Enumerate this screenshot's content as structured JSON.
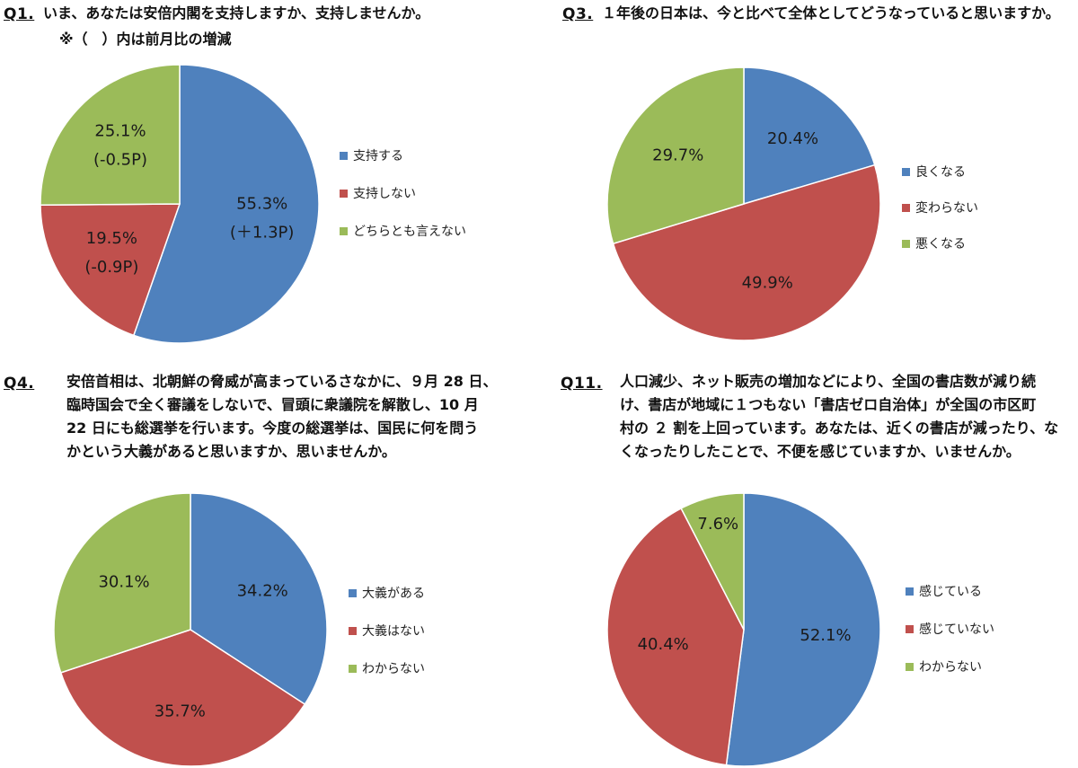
{
  "colors": {
    "blue": "#4f81bd",
    "red": "#c0504d",
    "green": "#9bbb59"
  },
  "panels": [
    {
      "id": "q1",
      "question_label": "Q1.",
      "question_lines": [
        "いま、あなたは安倍内閣を支持しますか、支持しませんか。"
      ],
      "note": "※（　）内は前月比の増減",
      "chart_data": {
        "type": "pie",
        "categories": [
          "支持する",
          "支持しない",
          "どちらとも言えない"
        ],
        "values": [
          55.3,
          19.5,
          25.1
        ],
        "labels": [
          "55.3%",
          "19.5%",
          "25.1%"
        ],
        "sublabels": [
          "(＋1.3P)",
          "(-0.9P)",
          "(-0.5P)"
        ],
        "colors": [
          "#4f81bd",
          "#c0504d",
          "#9bbb59"
        ],
        "legend_position": "right"
      }
    },
    {
      "id": "q3",
      "question_label": "Q3.",
      "question_lines": [
        "１年後の日本は、今と比べて全体としてどうなっていると思いますか。"
      ],
      "chart_data": {
        "type": "pie",
        "categories": [
          "良くなる",
          "変わらない",
          "悪くなる"
        ],
        "values": [
          20.4,
          49.9,
          29.7
        ],
        "labels": [
          "20.4%",
          "49.9%",
          "29.7%"
        ],
        "colors": [
          "#4f81bd",
          "#c0504d",
          "#9bbb59"
        ],
        "legend_position": "right"
      }
    },
    {
      "id": "q4",
      "question_label": "Q4.",
      "question_lines": [
        "安倍首相は、北朝鮮の脅威が高まっているさなかに、９月 28 日、",
        "臨時国会で全く審議をしないで、冒頭に衆議院を解散し、10 月",
        "22 日にも総選挙を行います。今度の総選挙は、国民に何を問う",
        "かという大義があると思いますか、思いませんか。"
      ],
      "chart_data": {
        "type": "pie",
        "categories": [
          "大義がある",
          "大義はない",
          "わからない"
        ],
        "values": [
          34.2,
          35.7,
          30.1
        ],
        "labels": [
          "34.2%",
          "35.7%",
          "30.1%"
        ],
        "colors": [
          "#4f81bd",
          "#c0504d",
          "#9bbb59"
        ],
        "legend_position": "right"
      }
    },
    {
      "id": "q11",
      "question_label": "Q11.",
      "question_lines": [
        "人口減少、ネット販売の増加などにより、全国の書店数が減り続",
        "け、書店が地域に１つもない「書店ゼロ自治体」が全国の市区町",
        "村の ２ 割を上回っています。あなたは、近くの書店が減ったり、な",
        "くなったりしたことで、不便を感じていますか、いませんか。"
      ],
      "chart_data": {
        "type": "pie",
        "categories": [
          "感じている",
          "感じていない",
          "わからない"
        ],
        "values": [
          52.1,
          40.4,
          7.6
        ],
        "labels": [
          "52.1%",
          "40.4%",
          "7.6%"
        ],
        "colors": [
          "#4f81bd",
          "#c0504d",
          "#9bbb59"
        ],
        "legend_position": "right"
      }
    }
  ]
}
